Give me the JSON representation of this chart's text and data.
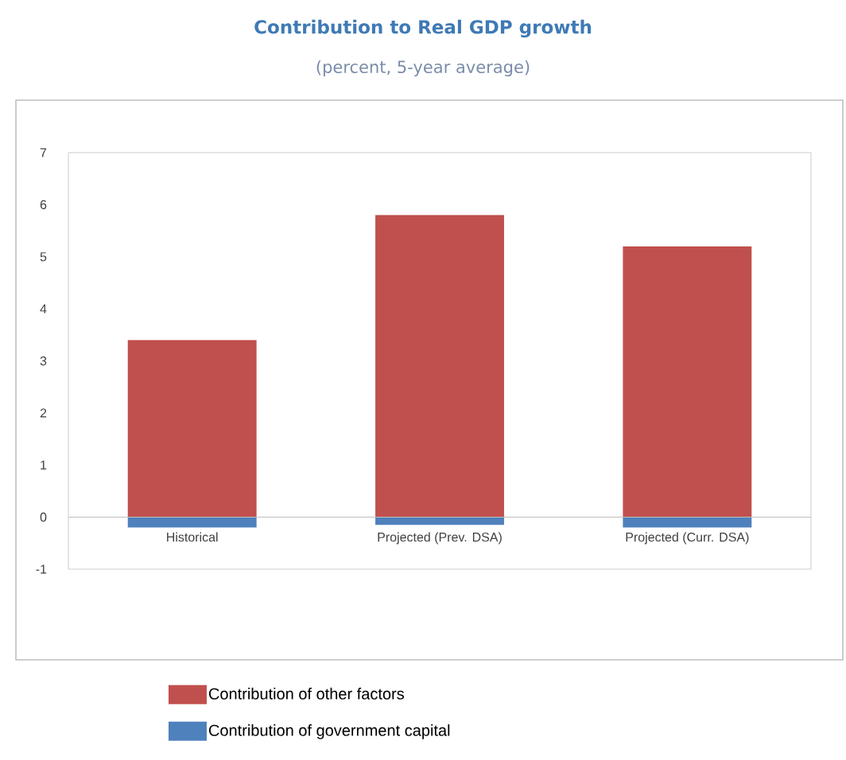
{
  "chart_data": {
    "type": "bar",
    "title": "Contribution to Real GDP growth",
    "subtitle": "(percent, 5-year average)",
    "categories": [
      "Historical",
      "Projected (Prev. DSA)",
      "Projected (Curr. DSA)"
    ],
    "stacked": true,
    "series": [
      {
        "name": "Contribution of other factors",
        "color": "#c0504d",
        "values": [
          3.4,
          5.8,
          5.2
        ]
      },
      {
        "name": "Contribution of government capital",
        "color": "#4f81bd",
        "values": [
          -0.2,
          -0.15,
          -0.2
        ]
      }
    ],
    "ylim": [
      -1,
      7
    ],
    "yticks": [
      -1,
      0,
      1,
      2,
      3,
      4,
      5,
      6,
      7
    ],
    "grid": false,
    "legend": "bottom"
  }
}
